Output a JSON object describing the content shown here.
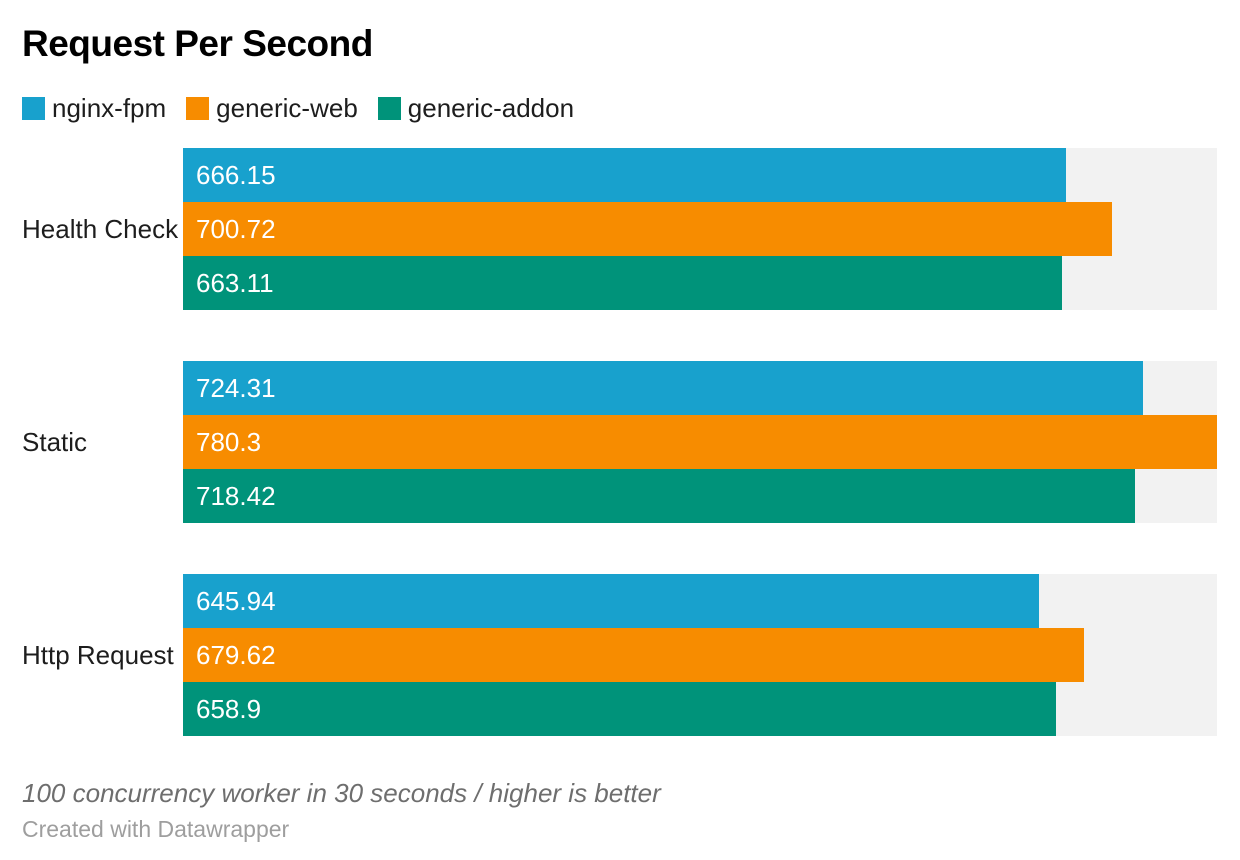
{
  "title": "Request Per Second",
  "legend": [
    {
      "label": "nginx-fpm",
      "color": "#18a1cd"
    },
    {
      "label": "generic-web",
      "color": "#f78c00"
    },
    {
      "label": "generic-addon",
      "color": "#00937a"
    }
  ],
  "chart_data": {
    "type": "bar",
    "orientation": "horizontal",
    "title": "Request Per Second",
    "categories": [
      "Health Check",
      "Static",
      "Http Request"
    ],
    "series": [
      {
        "name": "nginx-fpm",
        "color": "#18a1cd",
        "values": [
          666.15,
          724.31,
          645.94
        ]
      },
      {
        "name": "generic-web",
        "color": "#f78c00",
        "values": [
          700.72,
          780.3,
          679.62
        ]
      },
      {
        "name": "generic-addon",
        "color": "#00937a",
        "values": [
          663.11,
          718.42,
          658.9
        ]
      }
    ],
    "xlim": [
      0,
      780.3
    ],
    "value_labels": "inside-left-white",
    "track_color": "#f2f2f2",
    "grid": false,
    "legend_position": "top-left"
  },
  "footer": {
    "note": "100 concurrency worker in 30 seconds / higher is better",
    "attribution": "Created with Datawrapper"
  }
}
